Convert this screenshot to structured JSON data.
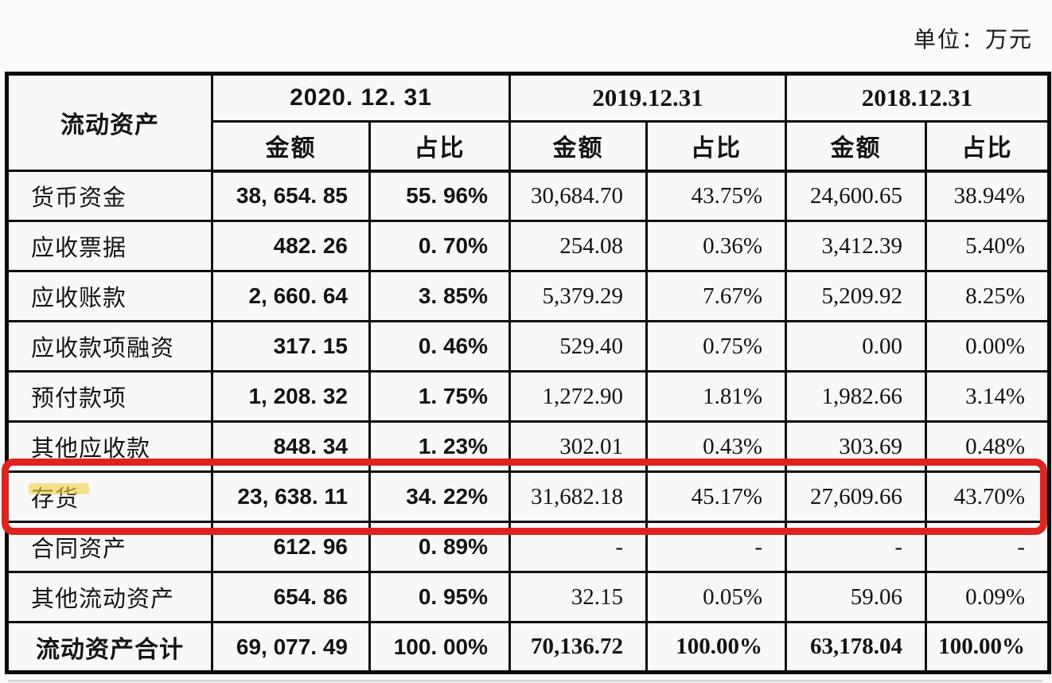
{
  "unit_label": "单位：万元",
  "highlight": {
    "box_color": "#df241f",
    "marker_color": "#f2d446",
    "highlighted_row": "存货"
  },
  "table": {
    "corner_header": "流动资产",
    "period_groups": [
      {
        "date": "2020. 12. 31",
        "amount_label": "金额",
        "ratio_label": "占比"
      },
      {
        "date": "2019.12.31",
        "amount_label": "金额",
        "ratio_label": "占比"
      },
      {
        "date": "2018.12.31",
        "amount_label": "金额",
        "ratio_label": "占比"
      }
    ],
    "rows": [
      {
        "label": "货币资金",
        "highlighted": false,
        "is_total": false,
        "values": [
          "38, 654. 85",
          "55. 96%",
          "30,684.70",
          "43.75%",
          "24,600.65",
          "38.94%"
        ]
      },
      {
        "label": "应收票据",
        "highlighted": false,
        "is_total": false,
        "values": [
          "482. 26",
          "0. 70%",
          "254.08",
          "0.36%",
          "3,412.39",
          "5.40%"
        ]
      },
      {
        "label": "应收账款",
        "highlighted": false,
        "is_total": false,
        "values": [
          "2, 660. 64",
          "3. 85%",
          "5,379.29",
          "7.67%",
          "5,209.92",
          "8.25%"
        ]
      },
      {
        "label": "应收款项融资",
        "highlighted": false,
        "is_total": false,
        "values": [
          "317. 15",
          "0. 46%",
          "529.40",
          "0.75%",
          "0.00",
          "0.00%"
        ]
      },
      {
        "label": "预付款项",
        "highlighted": false,
        "is_total": false,
        "values": [
          "1, 208. 32",
          "1. 75%",
          "1,272.90",
          "1.81%",
          "1,982.66",
          "3.14%"
        ]
      },
      {
        "label": "其他应收款",
        "highlighted": false,
        "is_total": false,
        "values": [
          "848. 34",
          "1. 23%",
          "302.01",
          "0.43%",
          "303.69",
          "0.48%"
        ]
      },
      {
        "label": "存货",
        "highlighted": true,
        "is_total": false,
        "values": [
          "23, 638. 11",
          "34. 22%",
          "31,682.18",
          "45.17%",
          "27,609.66",
          "43.70%"
        ]
      },
      {
        "label": "合同资产",
        "highlighted": false,
        "is_total": false,
        "values": [
          "612. 96",
          "0. 89%",
          "-",
          "-",
          "-",
          "-"
        ]
      },
      {
        "label": "其他流动资产",
        "highlighted": false,
        "is_total": false,
        "values": [
          "654. 86",
          "0. 95%",
          "32.15",
          "0.05%",
          "59.06",
          "0.09%"
        ]
      },
      {
        "label": "流动资产合计",
        "highlighted": false,
        "is_total": true,
        "values": [
          "69, 077. 49",
          "100. 00%",
          "70,136.72",
          "100.00%",
          "63,178.04",
          "100.00%"
        ]
      }
    ]
  }
}
